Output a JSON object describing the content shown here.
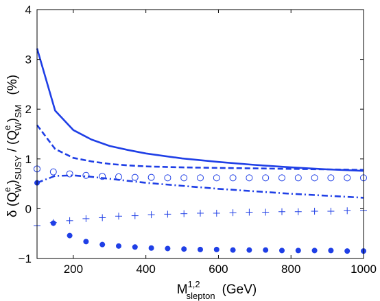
{
  "chart_data": {
    "type": "line",
    "xlim": [
      100,
      1000
    ],
    "ylim": [
      -1,
      4
    ],
    "x_ticks": [
      200,
      400,
      600,
      800,
      1000
    ],
    "y_ticks": [
      -1,
      0,
      1,
      2,
      3,
      4
    ],
    "x_tick_labels": [
      "200",
      "400",
      "600",
      "800",
      "1000"
    ],
    "y_tick_labels": [
      "−1",
      "0",
      "1",
      "2",
      "3",
      "4"
    ],
    "xlabel": {
      "main": "M",
      "sup": "1,2",
      "sub": "slepton",
      "unit": "(GeV)"
    },
    "ylabel": {
      "delta": "δ",
      "q1": "(Q",
      "sup": "e",
      "sub": "W",
      "close1": ")",
      "sub1": "SUSY",
      "slash": " / ",
      "q2": "(Q",
      "close2": ")",
      "sub2": "SM",
      "unit": "(%)"
    },
    "grid": false,
    "color": "#1f3fe6",
    "series": [
      {
        "style": "solid",
        "x": [
          100,
          150,
          200,
          250,
          300,
          350,
          400,
          500,
          600,
          700,
          800,
          900,
          1000
        ],
        "y": [
          3.22,
          1.97,
          1.58,
          1.39,
          1.26,
          1.18,
          1.11,
          1.01,
          0.94,
          0.88,
          0.83,
          0.79,
          0.76
        ]
      },
      {
        "style": "dashed",
        "x": [
          100,
          150,
          200,
          250,
          300,
          350,
          400,
          500,
          600,
          700,
          800,
          900,
          1000
        ],
        "y": [
          1.68,
          1.2,
          1.02,
          0.95,
          0.9,
          0.87,
          0.85,
          0.83,
          0.82,
          0.81,
          0.8,
          0.79,
          0.78
        ]
      },
      {
        "style": "dashdot",
        "x": [
          100,
          150,
          200,
          250,
          300,
          400,
          500,
          600,
          700,
          800,
          900,
          1000
        ],
        "y": [
          0.52,
          0.66,
          0.67,
          0.64,
          0.6,
          0.52,
          0.46,
          0.4,
          0.35,
          0.3,
          0.26,
          0.22
        ]
      },
      {
        "style": "open-circle",
        "x": [
          100,
          145,
          190,
          235,
          280,
          325,
          370,
          415,
          460,
          505,
          550,
          595,
          640,
          685,
          730,
          775,
          820,
          865,
          910,
          955,
          1000
        ],
        "y": [
          0.8,
          0.74,
          0.7,
          0.67,
          0.65,
          0.64,
          0.63,
          0.63,
          0.62,
          0.62,
          0.62,
          0.62,
          0.62,
          0.62,
          0.62,
          0.62,
          0.62,
          0.62,
          0.62,
          0.62,
          0.62
        ]
      },
      {
        "style": "plus",
        "x": [
          100,
          145,
          190,
          235,
          280,
          325,
          370,
          415,
          460,
          505,
          550,
          595,
          640,
          685,
          730,
          775,
          820,
          865,
          910,
          955,
          1000
        ],
        "y": [
          -0.34,
          -0.28,
          -0.24,
          -0.2,
          -0.18,
          -0.15,
          -0.14,
          -0.12,
          -0.11,
          -0.1,
          -0.09,
          -0.09,
          -0.08,
          -0.07,
          -0.07,
          -0.06,
          -0.06,
          -0.05,
          -0.05,
          -0.04,
          -0.04
        ]
      },
      {
        "style": "filled-circle",
        "x": [
          100,
          145,
          190,
          235,
          280,
          325,
          370,
          415,
          460,
          505,
          550,
          595,
          640,
          685,
          730,
          775,
          820,
          865,
          910,
          955,
          1000
        ],
        "y": [
          0.52,
          -0.29,
          -0.54,
          -0.66,
          -0.72,
          -0.75,
          -0.77,
          -0.79,
          -0.8,
          -0.81,
          -0.82,
          -0.82,
          -0.83,
          -0.83,
          -0.83,
          -0.84,
          -0.84,
          -0.84,
          -0.84,
          -0.85,
          -0.85
        ]
      }
    ]
  }
}
